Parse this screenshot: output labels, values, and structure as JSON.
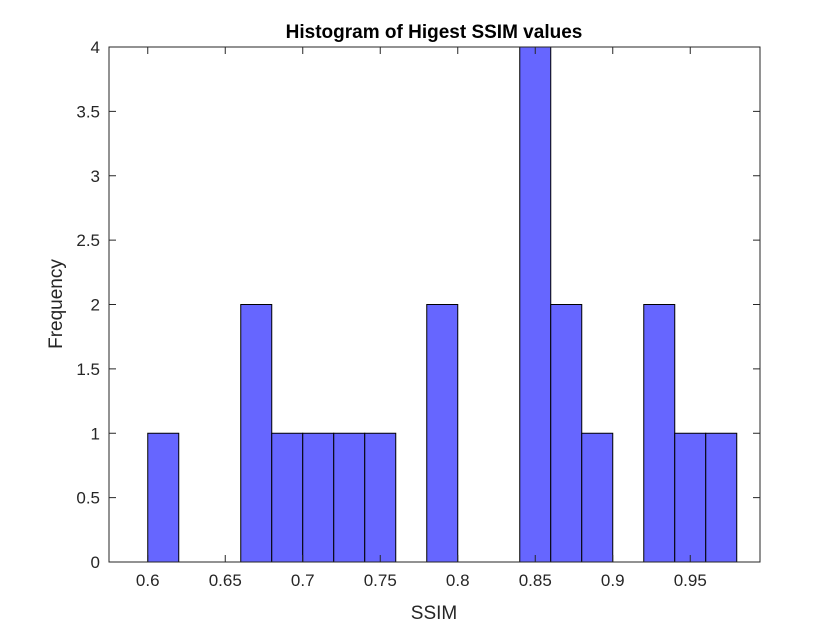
{
  "chart_data": {
    "type": "bar",
    "title": "Histogram of Higest SSIM values",
    "xlabel": "SSIM",
    "ylabel": "Frequency",
    "bin_edges": [
      0.6,
      0.62,
      0.64,
      0.66,
      0.68,
      0.7,
      0.72,
      0.74,
      0.76,
      0.78,
      0.8,
      0.82,
      0.84,
      0.86,
      0.88,
      0.9,
      0.92,
      0.94,
      0.96,
      0.98
    ],
    "values": [
      1,
      0,
      0,
      2,
      1,
      1,
      1,
      1,
      0,
      2,
      0,
      0,
      4,
      2,
      1,
      0,
      2,
      1,
      1
    ],
    "xlim": [
      0.575,
      0.995
    ],
    "ylim": [
      0,
      4
    ],
    "xticks": [
      0.6,
      0.65,
      0.7,
      0.75,
      0.8,
      0.85,
      0.9,
      0.95
    ],
    "xtick_labels": [
      "0.6",
      "0.65",
      "0.7",
      "0.75",
      "0.8",
      "0.85",
      "0.9",
      "0.95"
    ],
    "yticks": [
      0,
      0.5,
      1,
      1.5,
      2,
      2.5,
      3,
      3.5,
      4
    ],
    "ytick_labels": [
      "0",
      "0.5",
      "1",
      "1.5",
      "2",
      "2.5",
      "3",
      "3.5",
      "4"
    ],
    "grid": false,
    "colors": {
      "bar_fill": "#6666ff",
      "bar_edge": "#000000",
      "axis": "#262626"
    }
  }
}
